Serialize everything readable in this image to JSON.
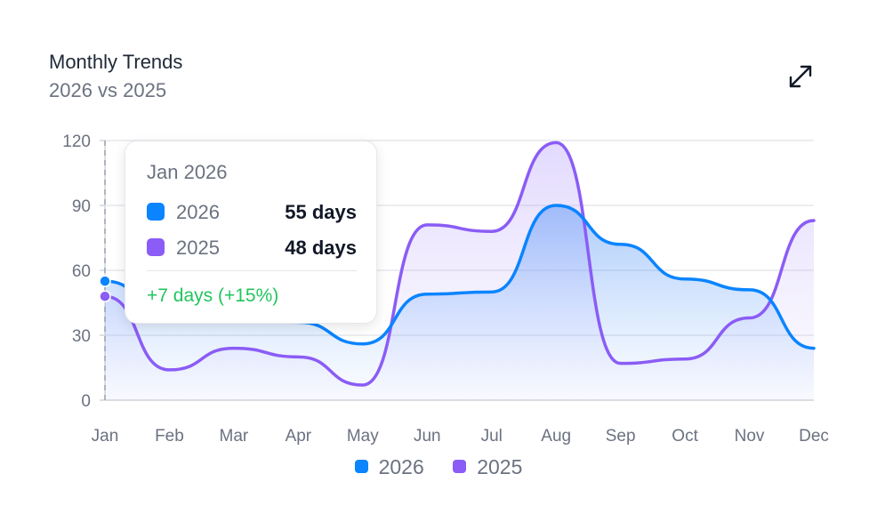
{
  "header": {
    "title": "Monthly Trends",
    "subtitle": "2026 vs 2025",
    "expand_icon": "expand-icon"
  },
  "tooltip": {
    "title": "Jan 2026",
    "rows": [
      {
        "label": "2026",
        "value": "55 days",
        "color": "#0a84ff"
      },
      {
        "label": "2025",
        "value": "48 days",
        "color": "#8b5cf6"
      }
    ],
    "delta": "+7 days (+15%)",
    "delta_color": "#22c55e"
  },
  "chart_data": {
    "type": "area",
    "categories": [
      "Jan",
      "Feb",
      "Mar",
      "Apr",
      "May",
      "Jun",
      "Jul",
      "Aug",
      "Sep",
      "Oct",
      "Nov",
      "Dec"
    ],
    "series": [
      {
        "name": "2026",
        "color": "#0a84ff",
        "values": [
          55,
          40,
          42,
          36,
          26,
          49,
          50,
          90,
          72,
          56,
          51,
          24
        ]
      },
      {
        "name": "2025",
        "color": "#8b5cf6",
        "values": [
          48,
          14,
          24,
          20,
          7,
          81,
          78,
          119,
          17,
          19,
          38,
          83
        ]
      }
    ],
    "ylim": [
      0,
      120
    ],
    "yticks": [
      0,
      30,
      60,
      90,
      120
    ],
    "xlabel": "",
    "ylabel": "",
    "grid": true,
    "legend": "bottom-center",
    "highlight_index": 0
  }
}
